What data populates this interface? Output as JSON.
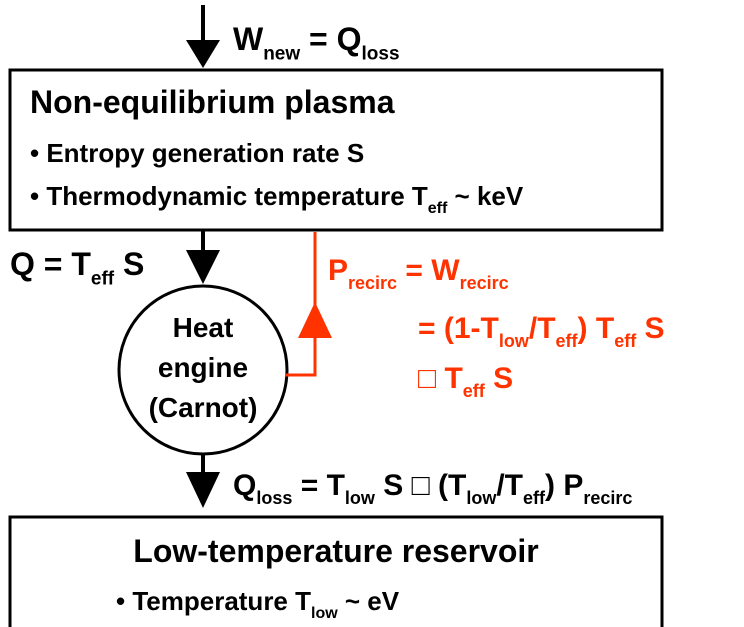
{
  "input": [
    {
      "text": "W"
    },
    {
      "sub": "new"
    },
    {
      "text": " = Q"
    },
    {
      "sub": "loss"
    }
  ],
  "plasma_box": {
    "title": "Non-equilibrium plasma",
    "bullets": [
      [
        {
          "text": "• Entropy generation rate S"
        }
      ],
      [
        {
          "text": "• Thermodynamic temperature T"
        },
        {
          "sub": "eff"
        },
        {
          "text": " ~ keV"
        }
      ]
    ]
  },
  "heat_flow": [
    {
      "text": "Q = T"
    },
    {
      "sub": "eff"
    },
    {
      "text": " S"
    }
  ],
  "engine": [
    "Heat",
    "engine",
    "(Carnot)"
  ],
  "recirc": [
    [
      {
        "text": "P"
      },
      {
        "sub": "recirc"
      },
      {
        "text": " = W"
      },
      {
        "sub": "recirc"
      }
    ],
    [
      {
        "text": "= (1-T"
      },
      {
        "sub": "low"
      },
      {
        "text": "/T"
      },
      {
        "sub": "eff"
      },
      {
        "text": ") T"
      },
      {
        "sub": "eff"
      },
      {
        "text": " S"
      }
    ],
    [
      {
        "text": "□ T"
      },
      {
        "sub": "eff"
      },
      {
        "text": " S"
      }
    ]
  ],
  "loss_flow": [
    {
      "text": "Q"
    },
    {
      "sub": "loss"
    },
    {
      "text": " = T"
    },
    {
      "sub": "low"
    },
    {
      "text": " S □ (T"
    },
    {
      "sub": "low"
    },
    {
      "text": "/T"
    },
    {
      "sub": "eff"
    },
    {
      "text": ") P"
    },
    {
      "sub": "recirc"
    }
  ],
  "reservoir": {
    "title": "Low-temperature reservoir",
    "bullets": [
      [
        {
          "text": "• Temperature T"
        },
        {
          "sub": "low"
        },
        {
          "text": " ~ eV"
        }
      ]
    ]
  }
}
